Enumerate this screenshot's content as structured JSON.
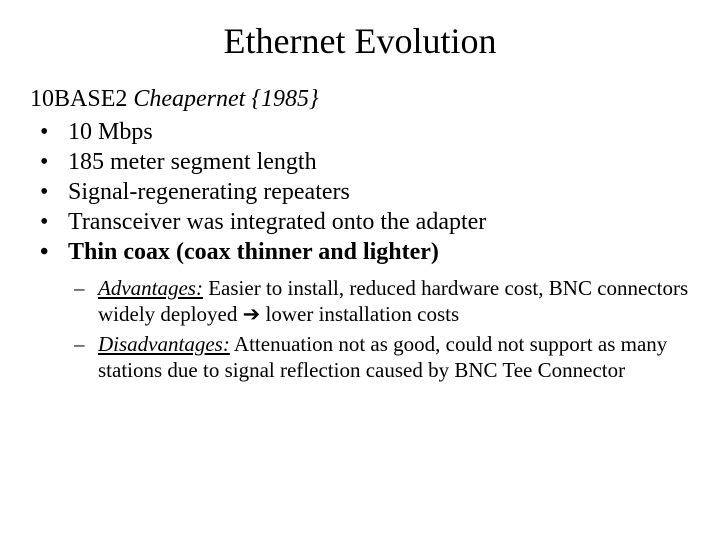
{
  "title": "Ethernet Evolution",
  "subtitle": {
    "name": "10BASE2",
    "desc": "Cheapernet",
    "year": "{1985}"
  },
  "bullets": {
    "b1": "10 Mbps",
    "b2": "185 meter segment length",
    "b3": "Signal-regenerating repeaters",
    "b4": "Transceiver was integrated onto the adapter",
    "b5": "Thin coax  (coax thinner and lighter)"
  },
  "sub": {
    "adv_label": "Advantages:",
    "adv_text_a": " Easier to install, reduced hardware cost, BNC connectors widely deployed ",
    "arrow": "➔",
    "adv_text_b": " lower installation costs",
    "dis_label": "Disadvantages:",
    "dis_text": " Attenuation not as good, could not support as many stations due to signal reflection caused by BNC Tee Connector"
  },
  "colors": {
    "background": "#ffffff",
    "text": "#000000"
  },
  "fonts": {
    "title_size": 36,
    "body_size": 24,
    "sub_size": 21,
    "family": "Times New Roman"
  }
}
